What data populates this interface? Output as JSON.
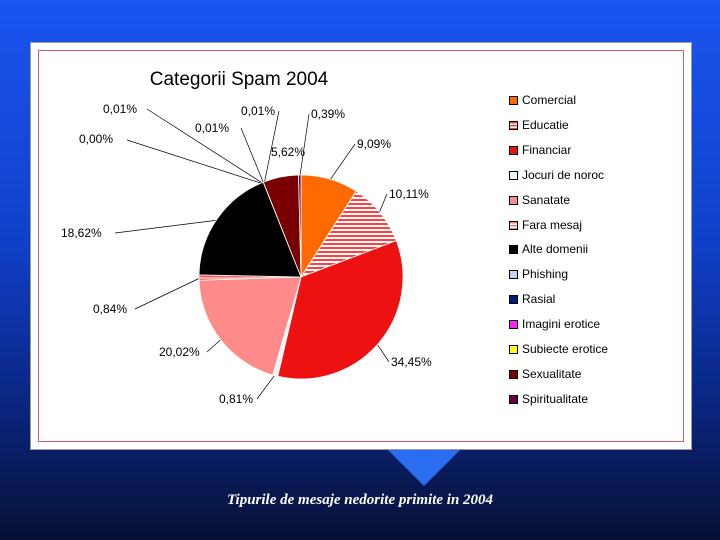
{
  "caption": "Tipurile de mesaje nedorite primite in 2004",
  "chart_data": {
    "type": "pie",
    "title": "Categorii Spam 2004",
    "legend_position": "right",
    "slices": [
      {
        "name": "Comercial",
        "value": 9.09,
        "label": "9,09%",
        "color": "#ff6a00"
      },
      {
        "name": "Educatie",
        "value": 10.11,
        "label": "10,11%",
        "color": "#ff4040",
        "pattern": "stripes"
      },
      {
        "name": "Financiar",
        "value": 34.45,
        "label": "34,45%",
        "color": "#ee1111"
      },
      {
        "name": "Jocuri de noroc",
        "value": 0.81,
        "label": "0,81%",
        "color": "#e8f6f6"
      },
      {
        "name": "Sanatate",
        "value": 20.02,
        "label": "20,02%",
        "color": "#ff8a8a"
      },
      {
        "name": "Fara mesaj",
        "value": 0.84,
        "label": "0,84%",
        "color": "#ff7777",
        "pattern": "stripes"
      },
      {
        "name": "Alte domenii",
        "value": 18.62,
        "label": "18,62%",
        "color": "#000000"
      },
      {
        "name": "Phishing",
        "value": 0.0,
        "label": "0,00%",
        "color": "#c8d2f0"
      },
      {
        "name": "Rasial",
        "value": 0.01,
        "label": "0,01%",
        "color": "#001a80"
      },
      {
        "name": "Imagini erotice",
        "value": 0.01,
        "label": "0,01%",
        "color": "#ff22ff"
      },
      {
        "name": "Subiecte erotice",
        "value": 0.01,
        "label": "0,01%",
        "color": "#ffff22"
      },
      {
        "name": "Sexualitate",
        "value": 5.62,
        "label": "5,62%",
        "color": "#7a0000"
      },
      {
        "name": "Spiritualitate",
        "value": 0.39,
        "label": "0,39%",
        "color": "#6a0044"
      }
    ]
  }
}
